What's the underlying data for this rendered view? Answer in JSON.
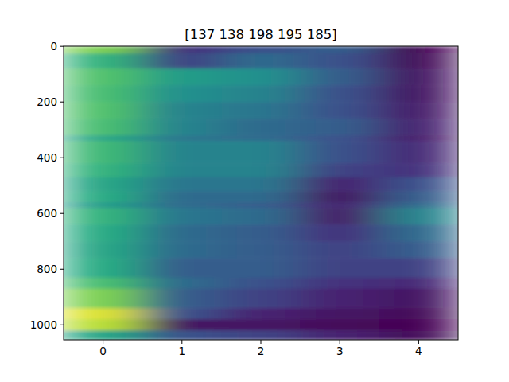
{
  "chart_data": {
    "type": "heatmap",
    "title": "[137 138 198 195 185]",
    "xlim": [
      -0.5,
      4.5
    ],
    "xticks": [
      0,
      1,
      2,
      3,
      4
    ],
    "ylim": [
      1053.5,
      -0.5
    ],
    "yticks": [
      0,
      200,
      400,
      600,
      800,
      1000
    ],
    "x_edges": [
      -0.5,
      0.5,
      1.5,
      2.5,
      3.5,
      4.5
    ],
    "y_edges": [
      -0.5,
      25,
      80,
      140,
      200,
      260,
      320,
      340,
      420,
      470,
      520,
      560,
      580,
      640,
      700,
      760,
      830,
      870,
      940,
      980,
      1020,
      1053.5
    ],
    "zlim": [
      0,
      1
    ],
    "cells": [
      [
        0.8,
        0.15,
        0.25,
        0.3,
        0.0
      ],
      [
        0.65,
        0.2,
        0.35,
        0.25,
        0.02
      ],
      [
        0.72,
        0.55,
        0.5,
        0.3,
        0.05
      ],
      [
        0.7,
        0.5,
        0.45,
        0.25,
        0.05
      ],
      [
        0.72,
        0.45,
        0.4,
        0.25,
        0.08
      ],
      [
        0.7,
        0.45,
        0.35,
        0.3,
        0.1
      ],
      [
        0.6,
        0.4,
        0.35,
        0.25,
        0.08
      ],
      [
        0.68,
        0.45,
        0.45,
        0.25,
        0.12
      ],
      [
        0.65,
        0.45,
        0.45,
        0.2,
        0.15
      ],
      [
        0.6,
        0.4,
        0.4,
        0.1,
        0.25
      ],
      [
        0.62,
        0.35,
        0.35,
        0.05,
        0.3
      ],
      [
        0.55,
        0.35,
        0.3,
        0.1,
        0.35
      ],
      [
        0.65,
        0.4,
        0.35,
        0.08,
        0.45
      ],
      [
        0.62,
        0.35,
        0.3,
        0.15,
        0.35
      ],
      [
        0.6,
        0.35,
        0.3,
        0.2,
        0.3
      ],
      [
        0.62,
        0.3,
        0.3,
        0.2,
        0.2
      ],
      [
        0.7,
        0.35,
        0.25,
        0.15,
        0.12
      ],
      [
        0.8,
        0.3,
        0.2,
        0.1,
        0.05
      ],
      [
        0.95,
        0.25,
        0.1,
        0.05,
        0.02
      ],
      [
        0.9,
        0.05,
        0.05,
        0.02,
        0.0
      ],
      [
        0.6,
        0.25,
        0.2,
        0.1,
        0.02
      ]
    ]
  }
}
